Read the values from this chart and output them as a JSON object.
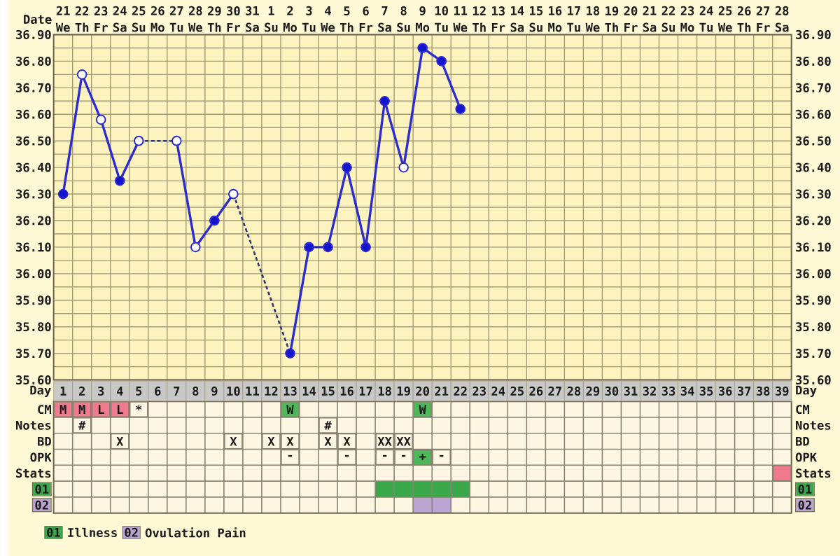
{
  "chart_data": [
    {
      "type": "line",
      "xlabel": "Date",
      "categories": [
        "21 We",
        "22 Th",
        "23 Fr",
        "24 Sa",
        "25 Su",
        "26 Mo",
        "27 Tu",
        "28 We",
        "29 Th",
        "30 Fr",
        "31 Sa",
        "1 Su",
        "2 Mo",
        "3 Tu",
        "4 We",
        "5 Th",
        "6 Fr",
        "7 Sa",
        "8 Su",
        "9 Mo",
        "10 Tu",
        "11 We",
        "12 Th",
        "13 Fr",
        "14 Sa",
        "15 Su",
        "16 Mo",
        "17 Tu",
        "18 We",
        "19 Th",
        "20 Fr",
        "21 Sa",
        "22 Su",
        "23 Mo",
        "24 Tu",
        "25 We",
        "26 Th",
        "27 Fr",
        "28 Sa"
      ],
      "ylim": [
        35.6,
        36.9
      ],
      "yticks": [
        {
          "value": 35.6,
          "label": "35.60"
        },
        {
          "value": 35.7,
          "label": "35.70"
        },
        {
          "value": 35.8,
          "label": "35.80"
        },
        {
          "value": 35.9,
          "label": "35.90"
        },
        {
          "value": 36.0,
          "label": "36.00"
        },
        {
          "value": 36.1,
          "label": "36.10"
        },
        {
          "value": 36.2,
          "label": "36.20"
        },
        {
          "value": 36.3,
          "label": "36.30"
        },
        {
          "value": 36.4,
          "label": "36.40"
        },
        {
          "value": 36.5,
          "label": "36.50"
        },
        {
          "value": 36.6,
          "label": "36.60"
        },
        {
          "value": 36.7,
          "label": "36.70"
        },
        {
          "value": 36.8,
          "label": "36.80"
        },
        {
          "value": 36.9,
          "label": "36.90"
        }
      ],
      "y2lim": [
        35.6,
        36.9
      ],
      "y2ticks": [
        {
          "value": 35.6,
          "label": "35.60"
        },
        {
          "value": 35.7,
          "label": "35.70"
        },
        {
          "value": 35.8,
          "label": "35.80"
        },
        {
          "value": 35.9,
          "label": "35.90"
        },
        {
          "value": 36.0,
          "label": "36.00"
        },
        {
          "value": 36.1,
          "label": "36.10"
        },
        {
          "value": 36.2,
          "label": "36.20"
        },
        {
          "value": 36.3,
          "label": "36.30"
        },
        {
          "value": 36.4,
          "label": "36.40"
        },
        {
          "value": 36.5,
          "label": "36.50"
        },
        {
          "value": 36.6,
          "label": "36.60"
        },
        {
          "value": 36.7,
          "label": "36.70"
        },
        {
          "value": 36.8,
          "label": "36.80"
        },
        {
          "value": 36.9,
          "label": "36.90"
        }
      ],
      "grid": true,
      "series": [
        {
          "type": "line",
          "color": "#2b2bd0",
          "values": [
            36.3,
            36.75,
            36.58,
            36.35,
            36.5,
            null,
            36.5,
            36.1,
            36.2,
            36.3,
            null,
            null,
            35.7,
            36.1,
            36.1,
            36.4,
            36.1,
            36.65,
            36.4,
            36.85,
            36.8,
            36.62,
            null,
            null,
            null,
            null,
            null,
            null,
            null,
            null,
            null,
            null,
            null,
            null,
            null,
            null,
            null,
            null,
            null
          ]
        },
        {
          "type": "line",
          "color": "#34346e",
          "line_style": "dashed",
          "x": [
            "25 Su",
            "27 Tu"
          ],
          "values": [
            36.5,
            36.5
          ]
        },
        {
          "type": "line",
          "color": "#34346e",
          "line_style": "dashed",
          "x": [
            "30 Fr",
            "2 Mo"
          ],
          "values": [
            36.3,
            35.7
          ]
        },
        {
          "type": "scatter",
          "color": "#1414cc",
          "marker": "circle",
          "values": [
            36.3,
            null,
            null,
            36.35,
            null,
            null,
            null,
            null,
            36.2,
            null,
            null,
            null,
            35.7,
            36.1,
            36.1,
            36.4,
            36.1,
            36.65,
            null,
            36.85,
            36.8,
            36.62,
            null,
            null,
            null,
            null,
            null,
            null,
            null,
            null,
            null,
            null,
            null,
            null,
            null,
            null,
            null,
            null,
            null
          ]
        },
        {
          "type": "scatter",
          "color": "#ffffff",
          "marker": "circle",
          "values": [
            null,
            36.75,
            36.58,
            null,
            36.5,
            null,
            36.5,
            36.1,
            null,
            36.3,
            null,
            null,
            null,
            null,
            null,
            null,
            null,
            null,
            36.4,
            null,
            null,
            null,
            null,
            null,
            null,
            null,
            null,
            null,
            null,
            null,
            null,
            null,
            null,
            null,
            null,
            null,
            null,
            null,
            null
          ]
        }
      ]
    },
    {
      "type": "bar",
      "orientation": "horizontal",
      "xlabel": "Day",
      "categories": [
        "CM",
        "Notes",
        "BD",
        "OPK",
        "Stats",
        "01",
        "02"
      ],
      "y2_categories": [
        "CM",
        "Notes",
        "BD",
        "OPK",
        "Stats",
        "01",
        "02"
      ],
      "xlim": [
        0.5,
        39.5
      ],
      "xticks": [
        1,
        2,
        3,
        4,
        5,
        6,
        7,
        8,
        9,
        10,
        11,
        12,
        13,
        14,
        15,
        16,
        17,
        18,
        19,
        20,
        21,
        22,
        23,
        24,
        25,
        26,
        27,
        28,
        29,
        30,
        31,
        32,
        33,
        34,
        35,
        36,
        37,
        38,
        39
      ],
      "grid": true,
      "legend": "bottom left",
      "series": [
        {
          "type": "scatter",
          "marker": "square",
          "x": [
            "CM",
            "CM",
            "CM",
            "CM",
            "CM",
            "CM",
            "CM",
            "Notes",
            "Notes",
            "BD",
            "BD",
            "BD",
            "BD",
            "BD",
            "BD",
            "BD",
            "BD",
            "OPK",
            "OPK",
            "OPK",
            "OPK",
            "OPK",
            "OPK",
            "Stats"
          ],
          "values": [
            1,
            2,
            3,
            4,
            5,
            13,
            20,
            2,
            15,
            4,
            10,
            12,
            13,
            15,
            16,
            18,
            19,
            13,
            16,
            18,
            19,
            20,
            21,
            39
          ],
          "colors": [
            "#f07a8e",
            "#f07a8e",
            "#f07a8e",
            "#f07a8e",
            "#fdf6e2",
            "#4cb85a",
            "#4cb85a",
            "#fdf6e2",
            "#fdf6e2",
            "#fdf6e2",
            "#fdf6e2",
            "#fdf6e2",
            "#fdf6e2",
            "#fdf6e2",
            "#fdf6e2",
            "#fdf6e2",
            "#fdf6e2",
            "#fdf6e2",
            "#fdf6e2",
            "#fdf6e2",
            "#fdf6e2",
            "#4cb85a",
            "#fdf6e2",
            "#f07a8e"
          ],
          "value_labels": [
            "M",
            "M",
            "L",
            "L",
            "*",
            "W",
            "W",
            "#",
            "#",
            "X",
            "X",
            "X",
            "X",
            "X",
            "X",
            "XX",
            "XX",
            "-",
            "-",
            "-",
            "-",
            "+",
            "-",
            null
          ]
        },
        {
          "name": "Illness",
          "color": "#3aa84a",
          "base": [
            null,
            null,
            null,
            null,
            null,
            17.5,
            null
          ],
          "values": [
            null,
            null,
            null,
            null,
            null,
            5,
            null
          ]
        },
        {
          "name": "Ovulation Pain",
          "color": "#b9a4d2",
          "base": [
            null,
            null,
            null,
            null,
            null,
            null,
            19.5
          ],
          "values": [
            null,
            null,
            null,
            null,
            null,
            null,
            2
          ]
        }
      ]
    }
  ]
}
